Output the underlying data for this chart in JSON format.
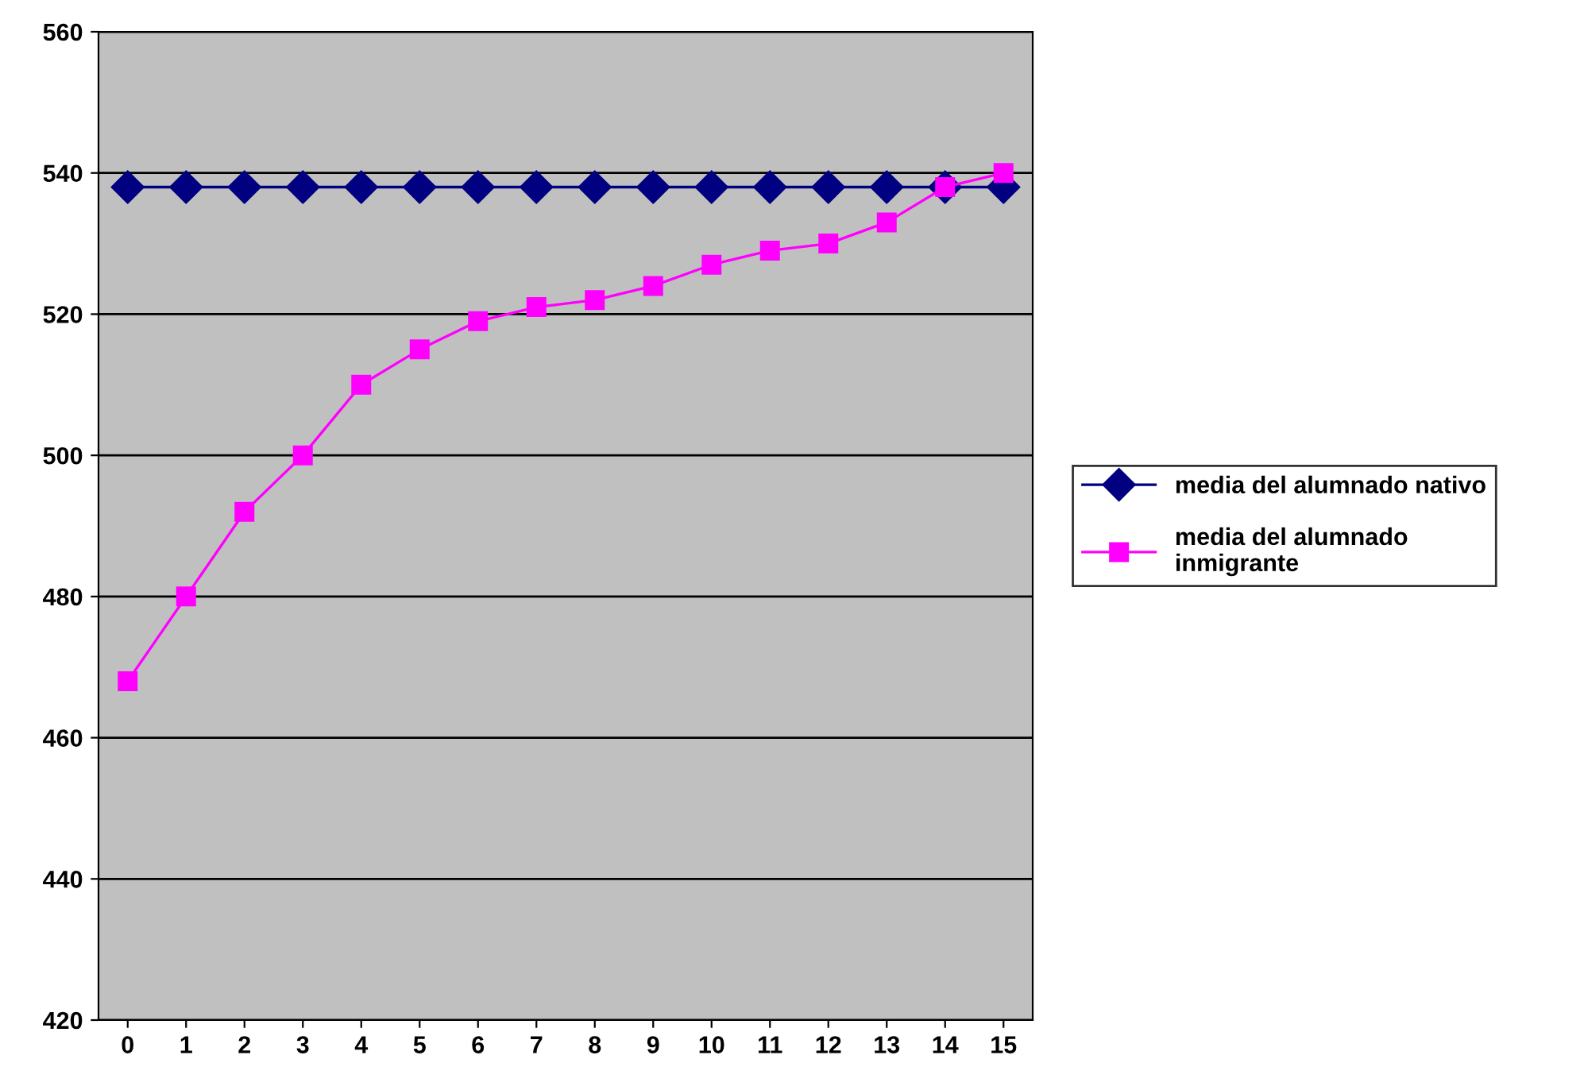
{
  "chart_data": {
    "type": "line",
    "categories": [
      "0",
      "1",
      "2",
      "3",
      "4",
      "5",
      "6",
      "7",
      "8",
      "9",
      "10",
      "11",
      "12",
      "13",
      "14",
      "15"
    ],
    "series": [
      {
        "name": "media del alumnado nativo",
        "color": "#000080",
        "marker": "diamond",
        "values": [
          538,
          538,
          538,
          538,
          538,
          538,
          538,
          538,
          538,
          538,
          538,
          538,
          538,
          538,
          538,
          538
        ]
      },
      {
        "name": "media del alumnado\ninmigrante",
        "color": "#ff00ff",
        "marker": "square",
        "values": [
          468,
          480,
          492,
          500,
          510,
          515,
          519,
          521,
          522,
          524,
          527,
          529,
          530,
          533,
          538,
          540
        ]
      }
    ],
    "ylim": [
      420,
      560
    ],
    "yticks": [
      420,
      440,
      460,
      480,
      500,
      520,
      540,
      560
    ],
    "grid": "y",
    "legend": "right",
    "line_style": "solid"
  }
}
